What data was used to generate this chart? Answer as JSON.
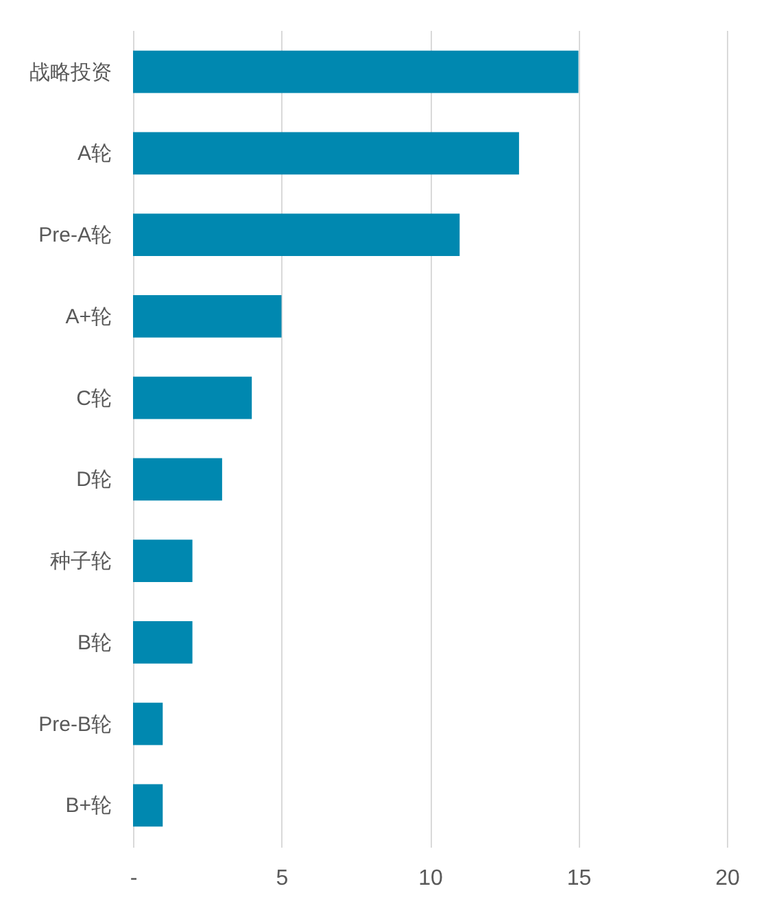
{
  "chart_data": {
    "type": "bar",
    "orientation": "horizontal",
    "categories": [
      "战略投资",
      "A轮",
      "Pre-A轮",
      "A+轮",
      "C轮",
      "D轮",
      "种子轮",
      "B轮",
      "Pre-B轮",
      "B+轮"
    ],
    "values": [
      15,
      13,
      11,
      5,
      4,
      3,
      2,
      2,
      1,
      1
    ],
    "color": "#0088b0",
    "xlim": [
      0,
      20
    ],
    "xticks": [
      {
        "value": 0,
        "label": "-"
      },
      5,
      10,
      15,
      20
    ],
    "grid": "x"
  }
}
